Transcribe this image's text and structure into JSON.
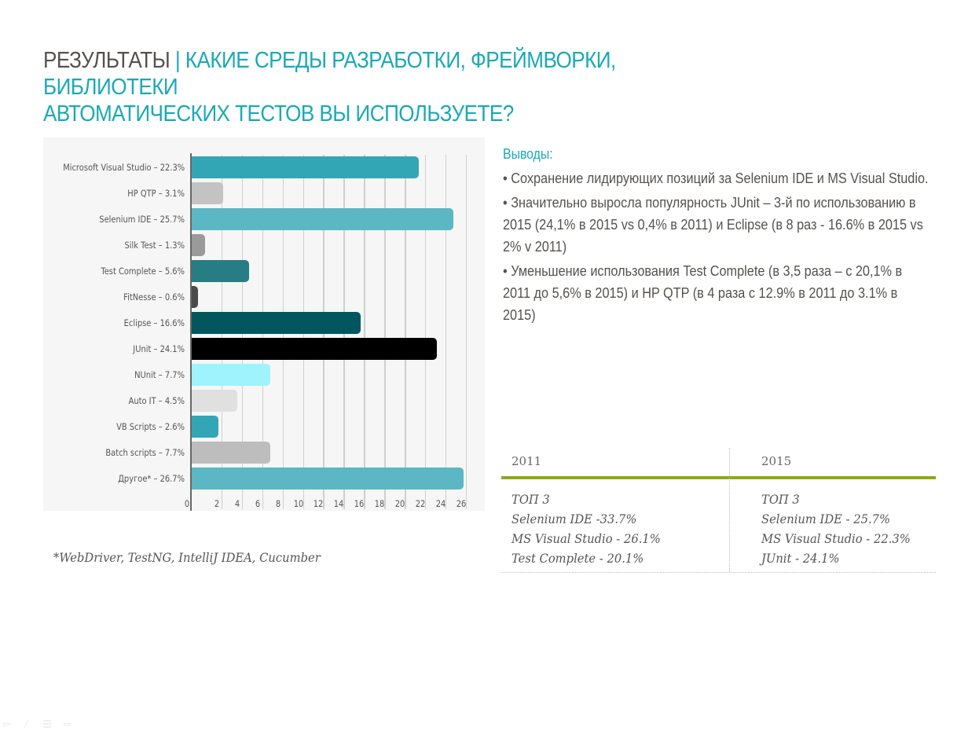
{
  "title": {
    "prefix": "РЕЗУЛЬТАТЫ",
    "separator": "|",
    "line1": "КАКИЕ СРЕДЫ РАЗРАБОТКИ, ФРЕЙМВОРКИ, БИБЛИОТЕКИ",
    "line2": "АВТОМАТИЧЕСКИХ ТЕСТОВ ВЫ ИСПОЛЬЗУЕТЕ?"
  },
  "chart_data": {
    "type": "bar",
    "orientation": "horizontal",
    "title": "",
    "xlabel": "",
    "ylabel": "",
    "xlim": [
      0,
      28
    ],
    "grid": true,
    "x_ticks": [
      "0",
      "2",
      "4",
      "6",
      "8",
      "10",
      "12",
      "14",
      "16",
      "18",
      "20",
      "22",
      "24",
      "26"
    ],
    "categories": [
      "Microsoft Visual Studio – 22.3%",
      "HP QTP – 3.1%",
      "Selenium IDE – 25.7%",
      "Silk Test – 1.3%",
      "Test Complete – 5.6%",
      "FitNesse – 0.6%",
      "Eclipse – 16.6%",
      "JUnit – 24.1%",
      "NUnit – 7.7%",
      "Auto IT – 4.5%",
      "VB Scripts – 2.6%",
      "Batch scripts – 7.7%",
      "Другое* – 26.7%"
    ],
    "values": [
      22.3,
      3.1,
      25.7,
      1.3,
      5.6,
      0.6,
      16.6,
      24.1,
      7.7,
      4.5,
      2.6,
      7.7,
      26.7
    ],
    "colors": [
      "#33a6b6",
      "#c3c3c3",
      "#5bb7c4",
      "#9a9a9a",
      "#287c84",
      "#4a4a4a",
      "#02575f",
      "#000000",
      "#9ef3fd",
      "#e0e0e0",
      "#33a6b6",
      "#bdbdbd",
      "#5bb7c4"
    ]
  },
  "footnote": "*WebDriver, TestNG, IntelliJ IDEA, Cucumber",
  "conclusions": {
    "heading": "Выводы:",
    "bullets": [
      "• Сохранение лидирующих позиций за Selenium IDE и MS Visual Studio.",
      "• Значительно выросла популярность JUnit – 3-й по использованию в 2015 (24,1% в 2015 vs 0,4% в 2011) и Eclipse (в 8 раз - 16.6% в 2015 vs 2% v 2011)",
      "• Уменьшение использования Test Complete (в 3,5 раза – с 20,1% в 2011 до 5,6% в 2015) и HP QTP (в 4 раза с 12.9% в 2011 до 3.1% в 2015)"
    ]
  },
  "comparison": {
    "columns": [
      {
        "year": "2011",
        "lines": [
          "ТОП 3",
          "Selenium IDE -33.7%",
          "MS Visual Studio - 26.1%",
          "Test Complete - 20.1%"
        ]
      },
      {
        "year": "2015",
        "lines": [
          "ТОП 3",
          "Selenium IDE - 25.7%",
          "MS Visual Studio - 22.3%",
          "JUnit - 24.1%"
        ]
      }
    ],
    "accent_color": "#8aab19"
  },
  "nav": {
    "icons": [
      "arrow-left-icon",
      "pen-icon",
      "menu-icon",
      "arrow-right-icon"
    ]
  }
}
